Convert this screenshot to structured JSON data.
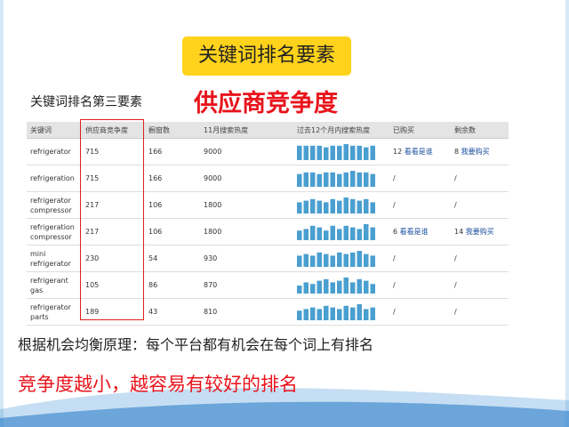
{
  "slide": {
    "title": "关键词排名要素",
    "subtitle": "关键词排名第三要素",
    "highlight": "供应商竞争度",
    "table": {
      "headers": [
        "关键词",
        "供应商竞争度",
        "橱窗数",
        "11月搜索热度",
        "过去12个月内搜索热度",
        "已购买",
        "剩余数"
      ],
      "rows": [
        {
          "keyword": "refrigerator",
          "competition": 715,
          "showcase": 166,
          "search": 9000,
          "trend": [
            9,
            9,
            9,
            9,
            8,
            9,
            9,
            10,
            9,
            9,
            8,
            9
          ],
          "bought": {
            "count": 12,
            "link": "看看是谁"
          },
          "remaining": {
            "count": 8,
            "link": "我要购买"
          }
        },
        {
          "keyword": "refrigeration",
          "competition": 715,
          "showcase": 166,
          "search": 9000,
          "trend": [
            8,
            9,
            9,
            8,
            9,
            9,
            8,
            9,
            10,
            9,
            9,
            8
          ],
          "bought": "/",
          "remaining": "/"
        },
        {
          "keyword": "refrigerator compressor",
          "competition": 217,
          "showcase": 106,
          "search": 1800,
          "trend": [
            7,
            8,
            9,
            8,
            7,
            9,
            8,
            10,
            9,
            8,
            9,
            7
          ],
          "bought": "/",
          "remaining": "/"
        },
        {
          "keyword": "refrigeration compressor",
          "competition": 217,
          "showcase": 106,
          "search": 1800,
          "trend": [
            6,
            7,
            9,
            8,
            6,
            9,
            7,
            9,
            8,
            7,
            10,
            8
          ],
          "bought": {
            "count": 6,
            "link": "看看是谁"
          },
          "remaining": {
            "count": 14,
            "link": "我要购买"
          }
        },
        {
          "keyword": "mini refrigerator",
          "competition": 230,
          "showcase": 54,
          "search": 930,
          "trend": [
            7,
            8,
            7,
            9,
            8,
            7,
            9,
            8,
            9,
            10,
            8,
            7
          ],
          "bought": "/",
          "remaining": "/"
        },
        {
          "keyword": "refrigerant gas",
          "competition": 105,
          "showcase": 86,
          "search": 870,
          "trend": [
            5,
            7,
            6,
            8,
            9,
            7,
            8,
            10,
            7,
            9,
            8,
            6
          ],
          "bought": "/",
          "remaining": "/"
        },
        {
          "keyword": "refrigerator parts",
          "competition": 189,
          "showcase": 43,
          "search": 810,
          "trend": [
            6,
            7,
            8,
            7,
            9,
            8,
            7,
            9,
            8,
            10,
            7,
            8
          ],
          "bought": "/",
          "remaining": "/"
        }
      ]
    },
    "note": "根据机会均衡原理：每个平台都有机会在每个词上有排名",
    "conclusion": "竞争度越小，越容易有较好的排名"
  }
}
